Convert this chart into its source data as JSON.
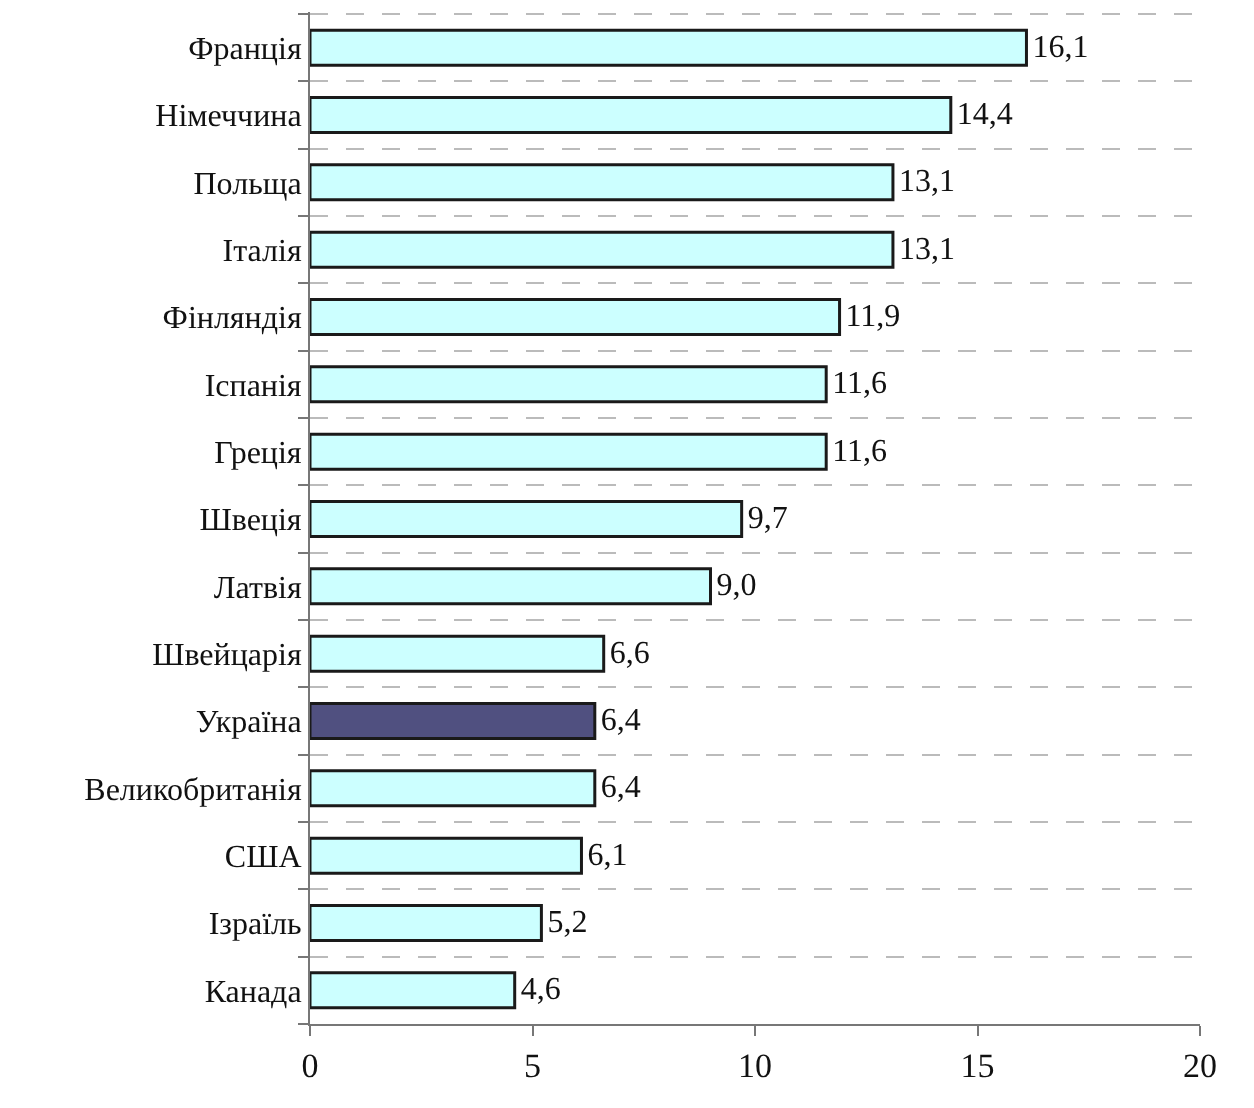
{
  "chart_data": {
    "type": "bar",
    "orientation": "horizontal",
    "categories": [
      "Франція",
      "Німеччина",
      "Польща",
      "Італія",
      "Фінляндія",
      "Іспанія",
      "Греція",
      "Швеція",
      "Латвія",
      "Швейцарія",
      "Україна",
      "Великобританія",
      "США",
      "Ізраїль",
      "Канада"
    ],
    "values": [
      16.1,
      14.4,
      13.1,
      13.1,
      11.9,
      11.6,
      11.6,
      9.7,
      9.0,
      6.6,
      6.4,
      6.4,
      6.1,
      5.2,
      4.6
    ],
    "value_labels": [
      "16,1",
      "14,4",
      "13,1",
      "13,1",
      "11,9",
      "11,6",
      "11,6",
      "9,7",
      "9,0",
      "6,6",
      "6,4",
      "6,4",
      "6,1",
      "5,2",
      "4,6"
    ],
    "colors": [
      "#ccffff",
      "#ccffff",
      "#ccffff",
      "#ccffff",
      "#ccffff",
      "#ccffff",
      "#ccffff",
      "#ccffff",
      "#ccffff",
      "#ccffff",
      "#505080",
      "#ccffff",
      "#ccffff",
      "#ccffff",
      "#ccffff"
    ],
    "xlim": [
      0,
      20
    ],
    "xticks": [
      0,
      5,
      10,
      15,
      20
    ],
    "grid": "y"
  }
}
